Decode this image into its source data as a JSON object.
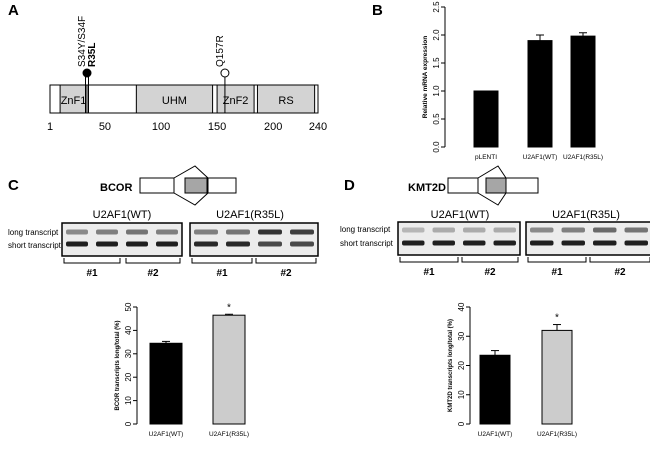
{
  "panels": {
    "A": {
      "letter": "A",
      "domains": [
        {
          "name": "ZnF1",
          "start": 10,
          "end": 34
        },
        {
          "name": "UHM",
          "start": 78,
          "end": 146
        },
        {
          "name": "ZnF2",
          "start": 150,
          "end": 183
        },
        {
          "name": "RS",
          "start": 186,
          "end": 237
        }
      ],
      "axis_ticks": [
        "1",
        "50",
        "100",
        "150",
        "200",
        "240"
      ],
      "axis_tick_values": [
        1,
        50,
        100,
        150,
        200,
        240
      ],
      "mutations": [
        {
          "label_line1": "S34Y/S34F",
          "label_line2": "R35L",
          "position": 34,
          "filled": true
        },
        {
          "label_line1": "Q157R",
          "label_line2": "",
          "position": 157,
          "filled": false
        }
      ]
    },
    "B": {
      "letter": "B",
      "chart_data": {
        "type": "bar",
        "categories": [
          "pLENTI",
          "U2AF1(WT)",
          "U2AF1(R35L)"
        ],
        "values": [
          1.0,
          1.9,
          1.98
        ],
        "errors": [
          0,
          0.1,
          0.06
        ],
        "ylabel": "Relative mRNA expression",
        "ylim": [
          0,
          2.5
        ],
        "yticks": [
          "0.0",
          "0.5",
          "1.0",
          "1.5",
          "2.0",
          "2.5"
        ],
        "colors": [
          "#000000",
          "#000000",
          "#000000"
        ]
      }
    },
    "C": {
      "letter": "C",
      "gene": "BCOR",
      "gel_groups": [
        "U2AF1(WT)",
        "U2AF1(R35L)"
      ],
      "bands": [
        "long transcript",
        "short transcript"
      ],
      "replicates": [
        "#1",
        "#2",
        "#1",
        "#2"
      ],
      "chart_data": {
        "type": "bar",
        "categories": [
          "U2AF1(WT)",
          "U2AF1(R35L)"
        ],
        "values": [
          34.5,
          46.5
        ],
        "errors": [
          0.8,
          0.4
        ],
        "ylabel": "BCOR transcripts long/total (%)",
        "ylim": [
          0,
          50
        ],
        "yticks": [
          "0",
          "10",
          "20",
          "30",
          "40",
          "50"
        ],
        "significance": [
          "",
          "*"
        ],
        "colors": [
          "#000000",
          "#cccccc"
        ]
      }
    },
    "D": {
      "letter": "D",
      "gene": "KMT2D",
      "gel_groups": [
        "U2AF1(WT)",
        "U2AF1(R35L)"
      ],
      "bands": [
        "long transcript",
        "short transcript"
      ],
      "replicates": [
        "#1",
        "#2",
        "#1",
        "#2"
      ],
      "chart_data": {
        "type": "bar",
        "categories": [
          "U2AF1(WT)",
          "U2AF1(R35L)"
        ],
        "values": [
          23.5,
          32
        ],
        "errors": [
          1.6,
          2.0
        ],
        "ylabel": "KMT2D transcripts long/total (%)",
        "ylim": [
          0,
          40
        ],
        "yticks": [
          "0",
          "10",
          "20",
          "30",
          "40"
        ],
        "significance": [
          "",
          "*"
        ],
        "colors": [
          "#000000",
          "#cccccc"
        ]
      }
    }
  }
}
